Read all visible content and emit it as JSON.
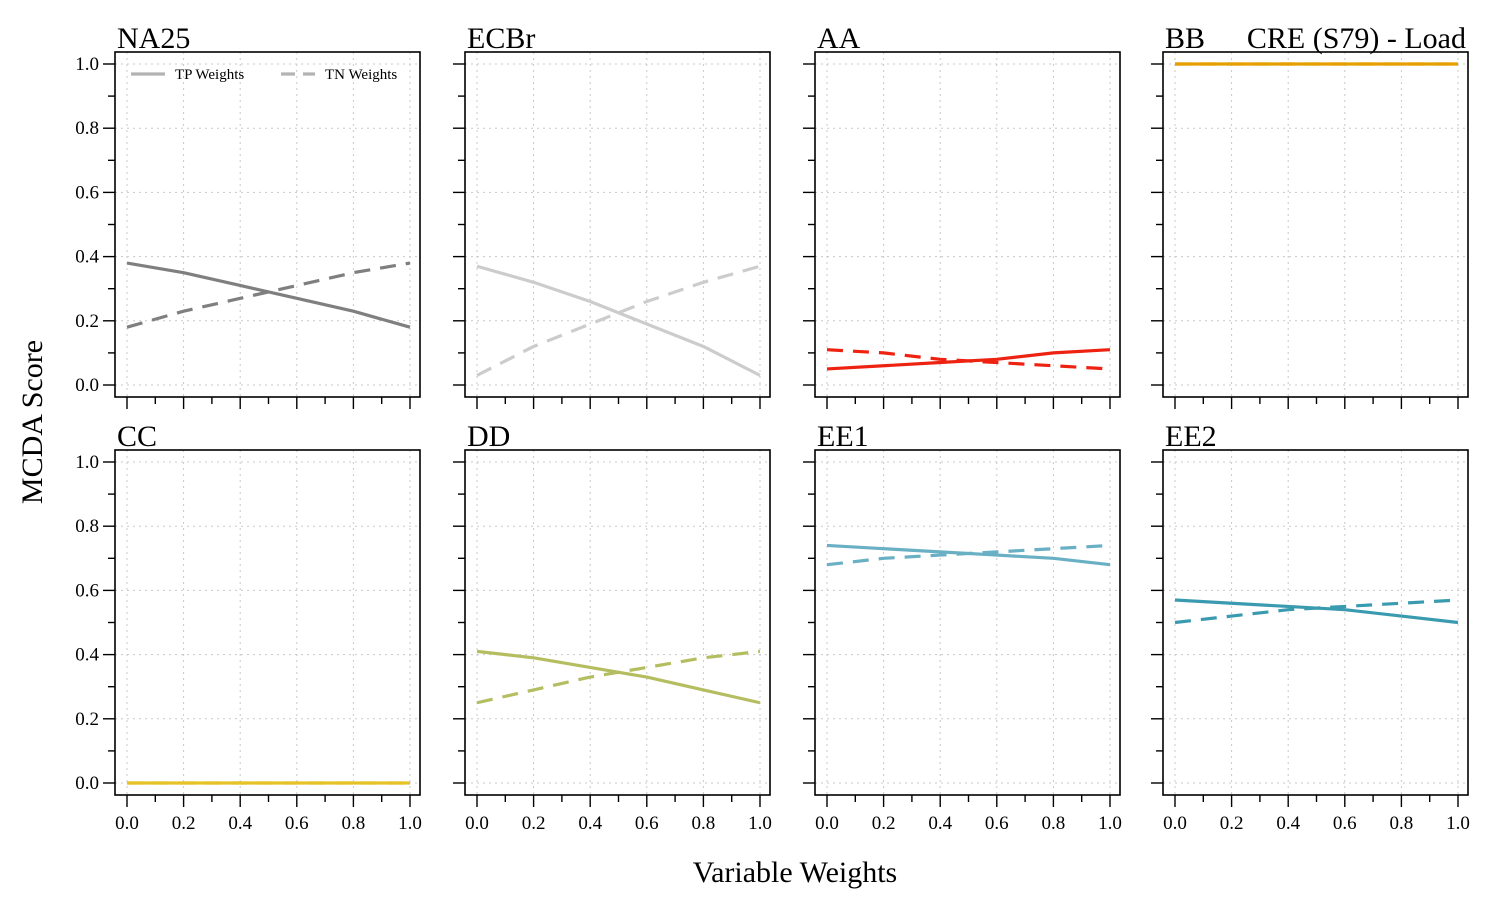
{
  "chart_data": {
    "type": "line",
    "title": "CRE (S79) - Load",
    "xlabel": "Variable Weights",
    "ylabel": "MCDA Score",
    "xlim": [
      0,
      1
    ],
    "ylim": [
      0,
      1
    ],
    "grid": true,
    "x_ticks": [
      "0.0",
      "0.2",
      "0.4",
      "0.6",
      "0.8",
      "1.0"
    ],
    "y_ticks": [
      "0.0",
      "0.2",
      "0.4",
      "0.6",
      "0.8",
      "1.0"
    ],
    "legend": {
      "placement": "top",
      "entries": [
        {
          "label": "TP Weights",
          "style": "solid"
        },
        {
          "label": "TN Weights",
          "style": "dashed"
        }
      ]
    },
    "x": [
      0.0,
      0.2,
      0.4,
      0.6,
      0.8,
      1.0
    ],
    "panels": [
      {
        "name": "NA25",
        "color": "#7f7f7f",
        "series": [
          {
            "style": "solid",
            "values": [
              0.38,
              0.35,
              0.31,
              0.27,
              0.23,
              0.18
            ]
          },
          {
            "style": "dashed",
            "values": [
              0.18,
              0.23,
              0.27,
              0.31,
              0.35,
              0.38
            ]
          }
        ]
      },
      {
        "name": "ECBr",
        "color": "#cccccc",
        "series": [
          {
            "style": "solid",
            "values": [
              0.37,
              0.32,
              0.26,
              0.19,
              0.12,
              0.03
            ]
          },
          {
            "style": "dashed",
            "values": [
              0.03,
              0.12,
              0.19,
              0.26,
              0.32,
              0.37
            ]
          }
        ]
      },
      {
        "name": "AA",
        "color": "#ee2211",
        "series": [
          {
            "style": "solid",
            "values": [
              0.05,
              0.06,
              0.07,
              0.08,
              0.1,
              0.11
            ]
          },
          {
            "style": "dashed",
            "values": [
              0.11,
              0.1,
              0.08,
              0.07,
              0.06,
              0.05
            ]
          }
        ]
      },
      {
        "name": "BB",
        "color": "#e69f00",
        "series": [
          {
            "style": "solid",
            "values": [
              1.0,
              1.0,
              1.0,
              1.0,
              1.0,
              1.0
            ]
          },
          {
            "style": "dashed",
            "values": [
              1.0,
              1.0,
              1.0,
              1.0,
              1.0,
              1.0
            ]
          }
        ]
      },
      {
        "name": "CC",
        "color": "#e6c229",
        "series": [
          {
            "style": "solid",
            "values": [
              0.0,
              0.0,
              0.0,
              0.0,
              0.0,
              0.0
            ]
          },
          {
            "style": "dashed",
            "values": [
              0.0,
              0.0,
              0.0,
              0.0,
              0.0,
              0.0
            ]
          }
        ]
      },
      {
        "name": "DD",
        "color": "#b5bd61",
        "series": [
          {
            "style": "solid",
            "values": [
              0.41,
              0.39,
              0.36,
              0.33,
              0.29,
              0.25
            ]
          },
          {
            "style": "dashed",
            "values": [
              0.25,
              0.29,
              0.33,
              0.36,
              0.39,
              0.41
            ]
          }
        ]
      },
      {
        "name": "EE1",
        "color": "#6ab0c4",
        "series": [
          {
            "style": "solid",
            "values": [
              0.74,
              0.73,
              0.72,
              0.71,
              0.7,
              0.68
            ]
          },
          {
            "style": "dashed",
            "values": [
              0.68,
              0.7,
              0.71,
              0.72,
              0.73,
              0.74
            ]
          }
        ]
      },
      {
        "name": "EE2",
        "color": "#3a9bb0",
        "series": [
          {
            "style": "solid",
            "values": [
              0.57,
              0.56,
              0.55,
              0.54,
              0.52,
              0.5
            ]
          },
          {
            "style": "dashed",
            "values": [
              0.5,
              0.52,
              0.54,
              0.55,
              0.56,
              0.57
            ]
          }
        ]
      }
    ]
  }
}
